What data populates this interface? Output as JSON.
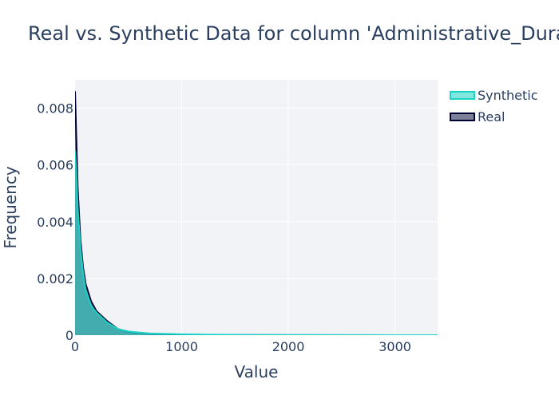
{
  "chart_data": {
    "type": "area",
    "title": "Real vs. Synthetic Data for column 'Administrative_Duration'",
    "xlabel": "Value",
    "ylabel": "Frequency",
    "xlim": [
      0,
      3400
    ],
    "ylim": [
      0,
      0.009
    ],
    "x_ticks": [
      0,
      1000,
      2000,
      3000
    ],
    "x_tick_labels": [
      "0",
      "1000",
      "2000",
      "3000"
    ],
    "y_ticks": [
      0,
      0.002,
      0.004,
      0.006,
      0.008
    ],
    "y_tick_labels": [
      "0",
      "0.002",
      "0.004",
      "0.006",
      "0.008"
    ],
    "grid": true,
    "legend_position": "top-right",
    "series": [
      {
        "name": "Real",
        "color": "#000033",
        "fill": "rgba(15,25,70,0.55)",
        "x": [
          0,
          10,
          25,
          50,
          75,
          100,
          150,
          200,
          300,
          400,
          500,
          700,
          1000,
          1500,
          2000,
          3000,
          3400
        ],
        "y": [
          0.0086,
          0.0072,
          0.0052,
          0.0034,
          0.0024,
          0.0018,
          0.0012,
          0.00085,
          0.0005,
          0.00022,
          0.00012,
          5e-05,
          2e-05,
          8e-06,
          4e-06,
          1e-06,
          0
        ]
      },
      {
        "name": "Synthetic",
        "color": "#19d3c5",
        "fill": "rgba(25,211,197,0.55)",
        "x": [
          0,
          10,
          25,
          50,
          75,
          100,
          150,
          200,
          300,
          400,
          500,
          700,
          1000,
          1500,
          2000,
          3000,
          3400
        ],
        "y": [
          0.0065,
          0.0059,
          0.0045,
          0.0031,
          0.0022,
          0.0016,
          0.00105,
          0.0008,
          0.00045,
          0.00022,
          0.00013,
          6e-05,
          3e-05,
          1e-05,
          5e-06,
          1e-06,
          0
        ]
      }
    ]
  }
}
